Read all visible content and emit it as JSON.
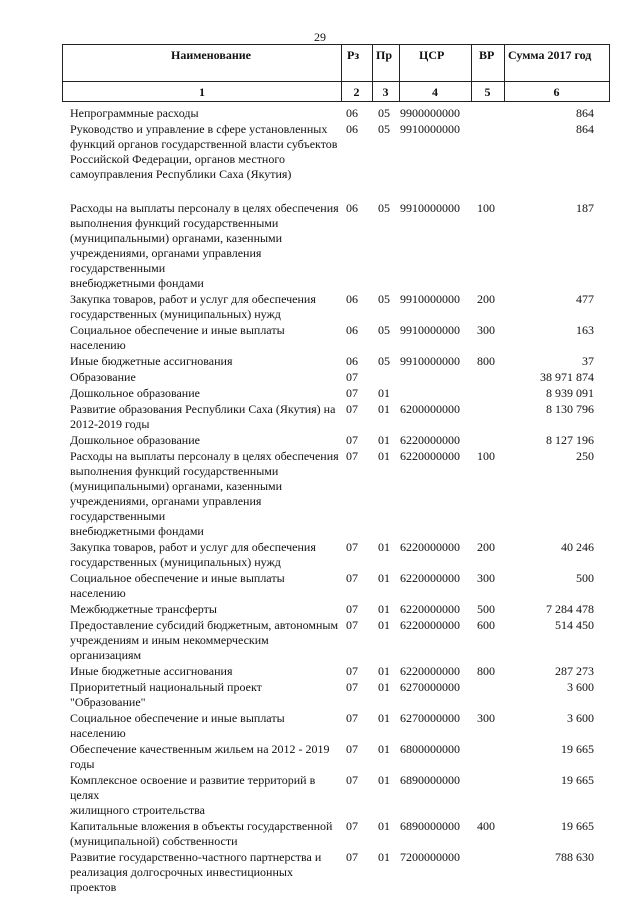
{
  "page_number": "29",
  "header": {
    "columns": [
      "Наименование",
      "Рз",
      "Пр",
      "ЦСР",
      "ВР",
      "Сумма 2017 год"
    ],
    "numbers": [
      "1",
      "2",
      "3",
      "4",
      "5",
      "6"
    ]
  },
  "rows": [
    {
      "name": "Непрограммные расходы",
      "rz": "06",
      "pr": "05",
      "csr": "9900000000",
      "vr": "",
      "sum": "864"
    },
    {
      "name": "Руководство и управление в сфере установленных\nфункций органов государственной власти субъектов\nРоссийской Федерации, органов местного\nсамоуправления Республики Саха (Якутия)",
      "rz": "06",
      "pr": "05",
      "csr": "9910000000",
      "vr": "",
      "sum": "864"
    },
    {
      "name": "Расходы на выплаты персоналу в целях обеспечения\nвыполнения функций государственными\n(муниципальными) органами, казенными\nучреждениями, органами управления государственными\nвнебюджетными фондами",
      "rz": "06",
      "pr": "05",
      "csr": "9910000000",
      "vr": "100",
      "sum": "187"
    },
    {
      "name": "Закупка товаров, работ и услуг для обеспечения\nгосударственных (муниципальных) нужд",
      "rz": "06",
      "pr": "05",
      "csr": "9910000000",
      "vr": "200",
      "sum": "477"
    },
    {
      "name": "Социальное обеспечение и иные выплаты населению",
      "rz": "06",
      "pr": "05",
      "csr": "9910000000",
      "vr": "300",
      "sum": "163"
    },
    {
      "name": "Иные бюджетные ассигнования",
      "rz": "06",
      "pr": "05",
      "csr": "9910000000",
      "vr": "800",
      "sum": "37"
    },
    {
      "name": "Образование",
      "rz": "07",
      "pr": "",
      "csr": "",
      "vr": "",
      "sum": "38 971 874"
    },
    {
      "name": "Дошкольное образование",
      "rz": "07",
      "pr": "01",
      "csr": "",
      "vr": "",
      "sum": "8 939 091"
    },
    {
      "name": "Развитие образования Республики Саха (Якутия) на\n2012-2019 годы",
      "rz": "07",
      "pr": "01",
      "csr": "6200000000",
      "vr": "",
      "sum": "8 130 796"
    },
    {
      "name": "Дошкольное образование",
      "rz": "07",
      "pr": "01",
      "csr": "6220000000",
      "vr": "",
      "sum": "8 127 196"
    },
    {
      "name": "Расходы на выплаты персоналу в целях обеспечения\nвыполнения функций государственными\n(муниципальными) органами, казенными\nучреждениями, органами управления государственными\nвнебюджетными фондами",
      "rz": "07",
      "pr": "01",
      "csr": "6220000000",
      "vr": "100",
      "sum": "250"
    },
    {
      "name": "Закупка товаров, работ и услуг для обеспечения\nгосударственных (муниципальных) нужд",
      "rz": "07",
      "pr": "01",
      "csr": "6220000000",
      "vr": "200",
      "sum": "40 246"
    },
    {
      "name": "Социальное обеспечение и иные выплаты населению",
      "rz": "07",
      "pr": "01",
      "csr": "6220000000",
      "vr": "300",
      "sum": "500"
    },
    {
      "name": "Межбюджетные трансферты",
      "rz": "07",
      "pr": "01",
      "csr": "6220000000",
      "vr": "500",
      "sum": "7 284 478"
    },
    {
      "name": "Предоставление субсидий бюджетным, автономным\nучреждениям и иным некоммерческим организациям",
      "rz": "07",
      "pr": "01",
      "csr": "6220000000",
      "vr": "600",
      "sum": "514 450"
    },
    {
      "name": "Иные бюджетные ассигнования",
      "rz": "07",
      "pr": "01",
      "csr": "6220000000",
      "vr": "800",
      "sum": "287 273"
    },
    {
      "name": "Приоритетный национальный проект \"Образование\"",
      "rz": "07",
      "pr": "01",
      "csr": "6270000000",
      "vr": "",
      "sum": "3 600"
    },
    {
      "name": "Социальное обеспечение и иные выплаты населению",
      "rz": "07",
      "pr": "01",
      "csr": "6270000000",
      "vr": "300",
      "sum": "3 600"
    },
    {
      "name": "Обеспечение качественным жильем на 2012 - 2019 годы",
      "rz": "07",
      "pr": "01",
      "csr": "6800000000",
      "vr": "",
      "sum": "19 665"
    },
    {
      "name": "Комплексное освоение и развитие территорий в целях\nжилищного строительства",
      "rz": "07",
      "pr": "01",
      "csr": "6890000000",
      "vr": "",
      "sum": "19 665"
    },
    {
      "name": "Капитальные вложения в объекты государственной\n(муниципальной) собственности",
      "rz": "07",
      "pr": "01",
      "csr": "6890000000",
      "vr": "400",
      "sum": "19 665"
    },
    {
      "name": "Развитие государственно-частного партнерства и\nреализация долгосрочных инвестиционных проектов",
      "rz": "07",
      "pr": "01",
      "csr": "7200000000",
      "vr": "",
      "sum": "788 630"
    }
  ]
}
